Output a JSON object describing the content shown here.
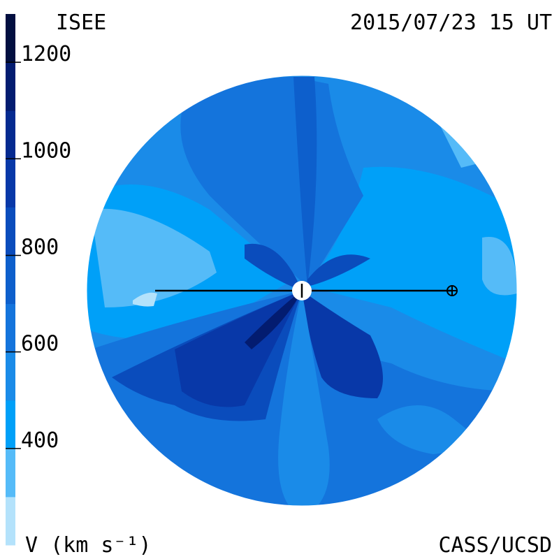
{
  "header": {
    "left": "ISEE",
    "right": "2015/07/23 15 UT"
  },
  "footer": {
    "left": "V (km s⁻¹)",
    "right": "CASS/UCSD"
  },
  "colorbar": {
    "vlim": [
      200,
      1300
    ],
    "ticks": [
      400,
      600,
      800,
      1000,
      1200
    ],
    "colors": [
      "#b4e2fb",
      "#55bbf8",
      "#00a0f8",
      "#1a8be8",
      "#1474dc",
      "#0d5fcc",
      "#0a4cbc",
      "#0838a8",
      "#052a90",
      "#031c70",
      "#020f40"
    ]
  }
}
